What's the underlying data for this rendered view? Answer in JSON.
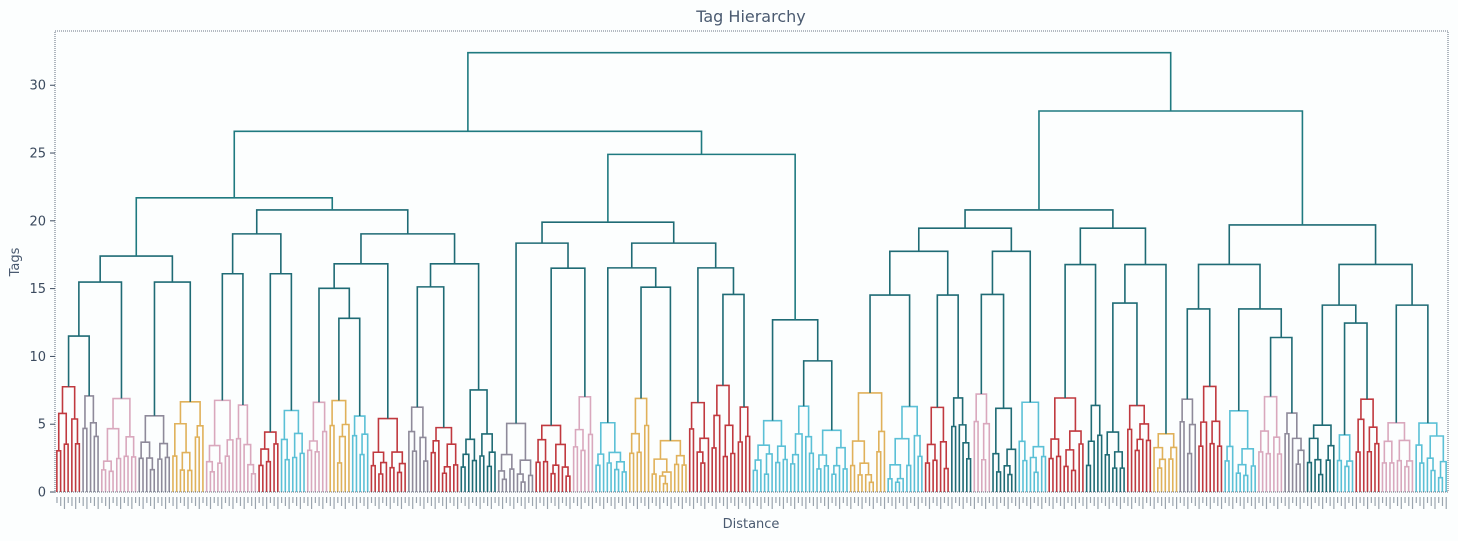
{
  "chart_data": {
    "type": "dendrogram",
    "title": "Tag Hierarchy",
    "xlabel": "Distance",
    "ylabel": "Tags",
    "ylim": [
      0,
      34
    ],
    "yticks": [
      0,
      5,
      10,
      15,
      20,
      25,
      30
    ],
    "leaf_count": 372,
    "root_height": 32.4,
    "colors": {
      "above_threshold": "#1f7a80",
      "clusters": [
        "#1f6b75",
        "#c0393f",
        "#d9a8bd",
        "#e0b15a",
        "#5bc0d6",
        "#8e8a9a"
      ]
    },
    "top_merges": [
      {
        "left": "A",
        "right": "B",
        "height": 32.4
      },
      {
        "name": "A",
        "children": [
          "A1",
          "A2"
        ],
        "height": 26.6
      },
      {
        "name": "A1",
        "children": [
          "A1a",
          "A1b"
        ],
        "height": 21.7
      },
      {
        "name": "A1a",
        "height": 17.4
      },
      {
        "name": "A1b",
        "height": 20.8
      },
      {
        "name": "A2",
        "children": [
          "A2a",
          "A2b"
        ],
        "height": 24.9
      },
      {
        "name": "A2a",
        "height": 19.9
      },
      {
        "name": "A2b",
        "height": 12.7
      },
      {
        "name": "B",
        "children": [
          "B1",
          "B2"
        ],
        "height": 28.1
      },
      {
        "name": "B1",
        "height": 20.8
      },
      {
        "name": "B2",
        "height": 19.7
      }
    ]
  }
}
